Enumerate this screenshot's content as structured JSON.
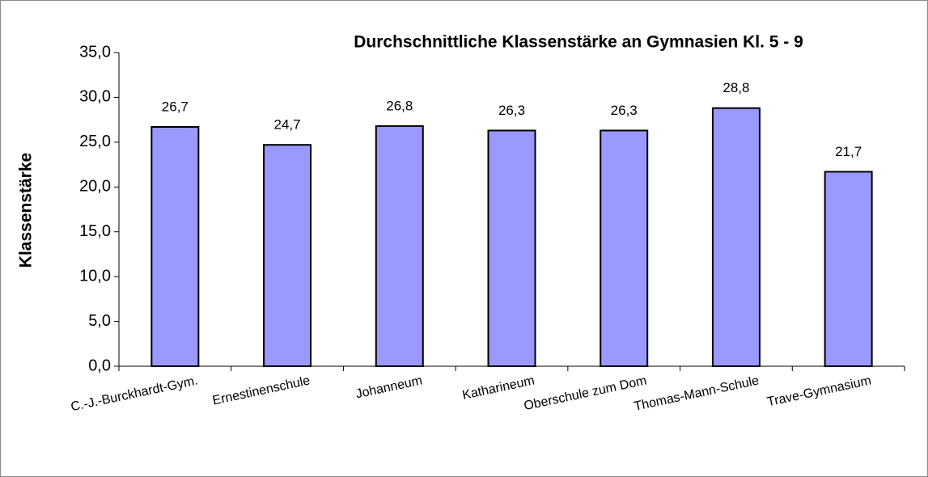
{
  "chart_data": {
    "type": "bar",
    "title": "Durchschnittliche Klassenstärke  an Gymnasien Kl. 5 - 9",
    "y_label": "Klassenstärke",
    "categories": [
      "C.-J.-Burckhardt-Gym.",
      "Ernestinenschule",
      "Johanneum",
      "Katharineum",
      "Oberschule zum Dom",
      "Thomas-Mann-Schule",
      "Trave-Gymnasium"
    ],
    "values": [
      26.7,
      24.7,
      26.8,
      26.3,
      26.3,
      28.8,
      21.7
    ],
    "value_labels": [
      "26,7",
      "24,7",
      "26,8",
      "26,3",
      "26,3",
      "28,8",
      "21,7"
    ],
    "color": "#9999ff",
    "ylim": [
      0,
      35
    ],
    "yticks": [
      {
        "value": 0,
        "label": "0,0"
      },
      {
        "value": 5,
        "label": "5,0"
      },
      {
        "value": 10,
        "label": "10,0"
      },
      {
        "value": 15,
        "label": "15,0"
      },
      {
        "value": 20,
        "label": "20,0"
      },
      {
        "value": 25,
        "label": "25,0"
      },
      {
        "value": 30,
        "label": "30,0"
      },
      {
        "value": 35,
        "label": "35,0"
      }
    ],
    "grid": false
  }
}
